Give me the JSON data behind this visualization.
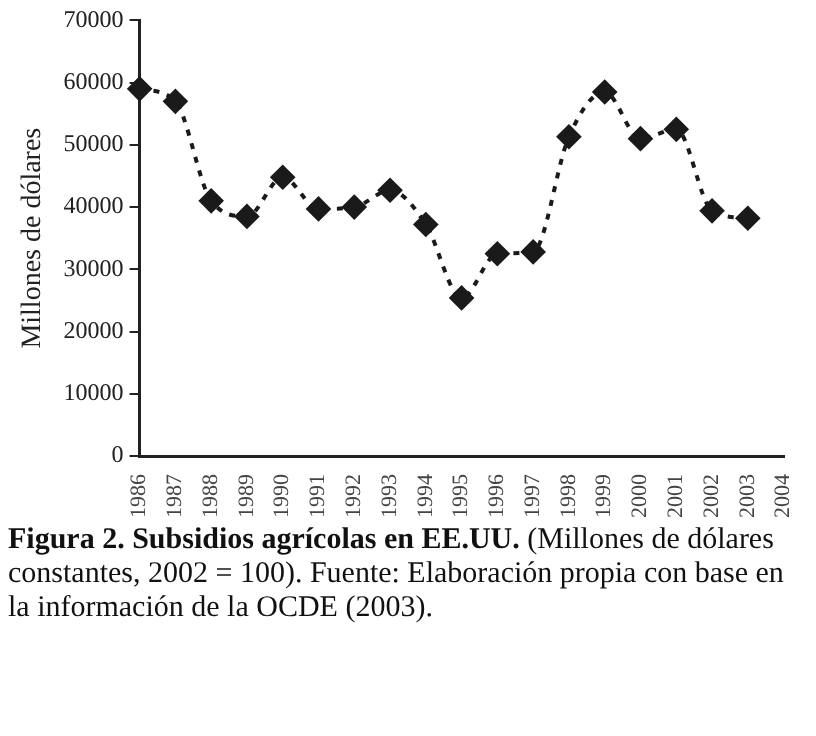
{
  "chart_data": {
    "type": "line",
    "title": "Figura 2. Subsidios agrícolas en EE.UU.",
    "subtitle": "(Millones de dólares constantes, 2002 = 100). Fuente: Elaboración propia con base en la información de la OCDE (2003).",
    "ylabel": "Millones de dólares",
    "categories": [
      "1986",
      "1987",
      "1988",
      "1989",
      "1990",
      "1991",
      "1992",
      "1993",
      "1994",
      "1995",
      "1996",
      "1997",
      "1998",
      "1999",
      "2000",
      "2001",
      "2002",
      "2003",
      "2004"
    ],
    "series": [
      {
        "color": "#1a1a1a",
        "values": [
          59000,
          57000,
          41000,
          38500,
          44800,
          39700,
          40000,
          42700,
          37200,
          25400,
          32500,
          32800,
          51300,
          58500,
          51000,
          52500,
          39400,
          38200,
          null
        ]
      }
    ],
    "ylim": [
      0,
      70000
    ],
    "yticks": [
      0,
      10000,
      20000,
      30000,
      40000,
      50000,
      60000,
      70000
    ],
    "grid": false,
    "legend": false,
    "marker": "diamond",
    "line_style": "dashed"
  }
}
